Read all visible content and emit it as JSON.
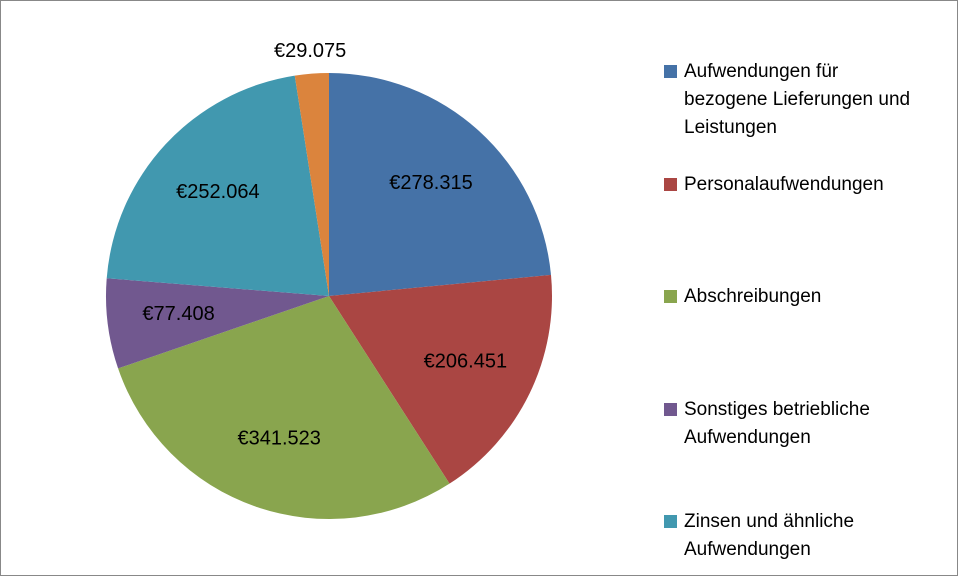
{
  "chart_data": {
    "type": "pie",
    "categories": [
      "Aufwendungen für bezogene Lieferungen und Leistungen",
      "Personalaufwendungen",
      "Abschreibungen",
      "Sonstiges betriebliche Aufwendungen",
      "Zinsen und ähnliche Aufwendungen",
      null
    ],
    "values": [
      278315,
      206451,
      341523,
      77408,
      252064,
      29075
    ],
    "value_labels": [
      "€278.315",
      "€206.451",
      "€341.523",
      "€77.408",
      "€252.064",
      "€29.075"
    ],
    "colors": [
      "#4572a7",
      "#aa4643",
      "#89a54e",
      "#71588f",
      "#4198af",
      "#db843d"
    ],
    "legend": "right"
  }
}
